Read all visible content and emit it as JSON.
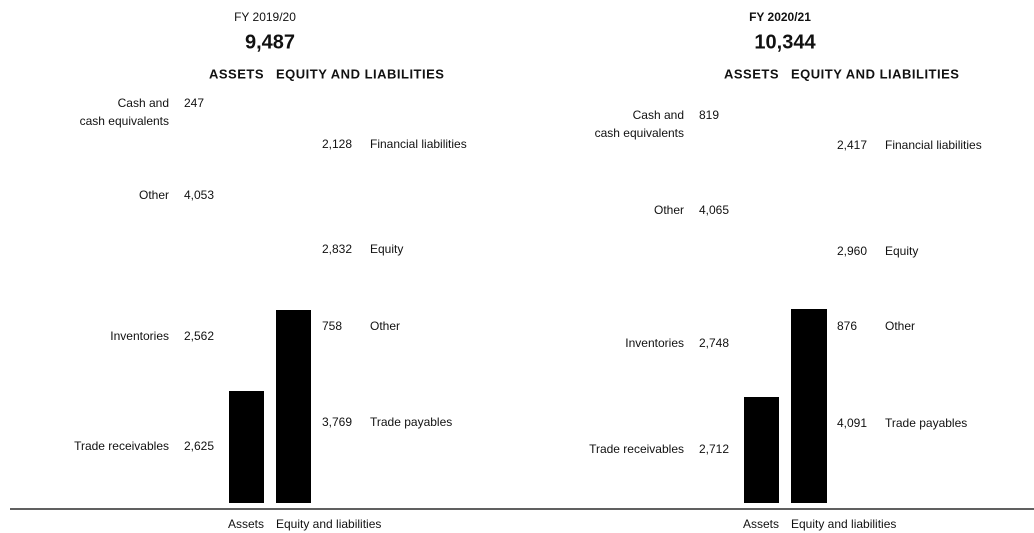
{
  "panels": [
    {
      "period": "FY 2019/20",
      "total": "9,487",
      "assets_header": "ASSETS",
      "equity_header": "EQUITY AND LIABILITIES",
      "assets": [
        {
          "label": [
            "Cash and",
            "cash equivalents"
          ],
          "value": "247"
        },
        {
          "label": [
            "Other"
          ],
          "value": "4,053"
        },
        {
          "label": [
            "Inventories"
          ],
          "value": "2,562"
        },
        {
          "label": [
            "Trade receivables"
          ],
          "value": "2,625"
        }
      ],
      "liabilities": [
        {
          "value": "2,128",
          "label": "Financial liabilities"
        },
        {
          "value": "2,832",
          "label": "Equity"
        },
        {
          "value": "758",
          "label": "Other"
        },
        {
          "value": "3,769",
          "label": "Trade payables"
        }
      ],
      "axis_assets": "Assets",
      "axis_equity": "Equity and liabilities"
    },
    {
      "period": "FY 2020/21",
      "total": "10,344",
      "assets_header": "ASSETS",
      "equity_header": "EQUITY AND LIABILITIES",
      "assets": [
        {
          "label": [
            "Cash and",
            "cash equivalents"
          ],
          "value": "819"
        },
        {
          "label": [
            "Other"
          ],
          "value": "4,065"
        },
        {
          "label": [
            "Inventories"
          ],
          "value": "2,748"
        },
        {
          "label": [
            "Trade receivables"
          ],
          "value": "2,712"
        }
      ],
      "liabilities": [
        {
          "value": "2,417",
          "label": "Financial liabilities"
        },
        {
          "value": "2,960",
          "label": "Equity"
        },
        {
          "value": "876",
          "label": "Other"
        },
        {
          "value": "4,091",
          "label": "Trade payables"
        }
      ],
      "axis_assets": "Assets",
      "axis_equity": "Equity and liabilities"
    }
  ]
}
